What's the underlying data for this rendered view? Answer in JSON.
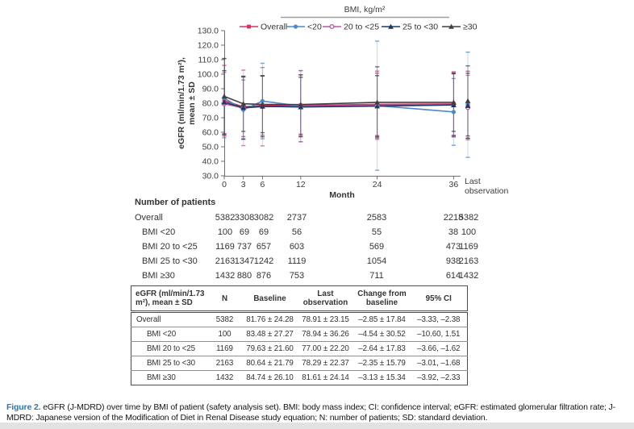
{
  "figure": {
    "caption_label": "Figure 2.",
    "caption_text": "eGFR (J-MDRD) over time by BMI of patient (safety analysis set). BMI: body mass index; CI: confidence interval; eGFR: estimated glomerular filtration rate; J-MDRD: Japanese version of the Modification of Diet in Renal Disease study equation; N: number of patients; SD: standard deviation.",
    "accent_color": "#2e74b5"
  },
  "chart_data": {
    "type": "line",
    "x_label": "Month",
    "y_label_lines": [
      "eGFR (ml/min/1.73 m²),",
      "mean ± SD"
    ],
    "x": [
      0,
      3,
      6,
      12,
      24,
      36
    ],
    "x_tick_labels": [
      "0",
      "3",
      "6",
      "12",
      "24",
      "36"
    ],
    "last_x_label_lines": [
      "Last",
      "observation"
    ],
    "y_ticks": [
      130,
      120,
      110,
      100,
      90,
      80,
      70,
      60,
      50,
      40,
      30
    ],
    "ylim": [
      30,
      130
    ],
    "grid": false,
    "legend_position": "top",
    "legend_header": "BMI, kg/m²",
    "point_labels": [
      "Month 0",
      "Month 3",
      "Month 6",
      "Month 12",
      "Month 24",
      "Month 36",
      "Last observation"
    ],
    "series": [
      {
        "name": "Overall",
        "color": "#d5305f",
        "marker": "square",
        "values": [
          81.76,
          77.5,
          78.5,
          78.5,
          79.2,
          79.5,
          78.91
        ],
        "sd": [
          24.28,
          20.5,
          20.5,
          21.0,
          21.5,
          21.5,
          23.15
        ]
      },
      {
        "name": "<20",
        "color": "#4d88cc",
        "marker": "circle",
        "values": [
          83.48,
          75.5,
          81.5,
          78.0,
          78.3,
          74.0,
          78.94
        ],
        "sd": [
          27.27,
          20.5,
          26.0,
          24.5,
          44.5,
          23.0,
          36.26
        ]
      },
      {
        "name": "20 to <25",
        "color": "#c052a2",
        "marker": "circle-open",
        "values": [
          79.63,
          76.8,
          77.6,
          77.9,
          78.6,
          79.2,
          77.0
        ],
        "sd": [
          21.6,
          26.0,
          27.0,
          24.5,
          23.5,
          22.5,
          22.2
        ]
      },
      {
        "name": "25 to <30",
        "color": "#1f3864",
        "marker": "triangle",
        "values": [
          80.64,
          76.9,
          77.9,
          77.4,
          78.0,
          78.8,
          78.29
        ],
        "sd": [
          21.79,
          21.5,
          21.0,
          20.5,
          21.0,
          21.5,
          22.37
        ]
      },
      {
        "name": "≥30",
        "color": "#3f3f3f",
        "marker": "triangle",
        "values": [
          84.74,
          79.6,
          79.2,
          79.1,
          80.6,
          80.6,
          81.61
        ],
        "sd": [
          26.1,
          19.0,
          19.5,
          20.5,
          24.5,
          20.0,
          24.14
        ]
      }
    ]
  },
  "patients_table": {
    "title": "Number of patients",
    "columns": [
      "0",
      "3",
      "6",
      "12",
      "24",
      "36",
      "Last observation"
    ],
    "rows": [
      {
        "label": "Overall",
        "indent": false,
        "values": [
          "5382",
          "3308",
          "3082",
          "2737",
          "2583",
          "2218",
          "5382"
        ]
      },
      {
        "label": "BMI <20",
        "indent": true,
        "values": [
          "100",
          "69",
          "69",
          "56",
          "55",
          "38",
          "100"
        ]
      },
      {
        "label": "BMI 20 to <25",
        "indent": true,
        "values": [
          "1169",
          "737",
          "657",
          "603",
          "569",
          "473",
          "1169"
        ]
      },
      {
        "label": "BMI 25 to <30",
        "indent": true,
        "values": [
          "2163",
          "1347",
          "1242",
          "1119",
          "1054",
          "938",
          "2163"
        ]
      },
      {
        "label": "BMI ≥30",
        "indent": true,
        "values": [
          "1432",
          "880",
          "876",
          "753",
          "711",
          "614",
          "1432"
        ]
      }
    ]
  },
  "summary_table": {
    "headers": [
      "eGFR (ml/min/1.73 m²), mean ± SD",
      "N",
      "Baseline",
      "Last observation",
      "Change from baseline",
      "95% CI"
    ],
    "rows": [
      {
        "label": "Overall",
        "indent": false,
        "values": [
          "5382",
          "81.76 ± 24.28",
          "78.91 ± 23.15",
          "–2.85 ± 17.84",
          "–3.33, –2.38"
        ]
      },
      {
        "label": "BMI <20",
        "indent": true,
        "values": [
          "100",
          "83.48 ± 27.27",
          "78.94 ± 36.26",
          "–4.54 ± 30.52",
          "–10.60, 1.51"
        ]
      },
      {
        "label": "BMI 20 to <25",
        "indent": true,
        "values": [
          "1169",
          "79.63 ± 21.60",
          "77.00 ± 22.20",
          "–2.64 ± 17.83",
          "–3.66, –1.62"
        ]
      },
      {
        "label": "BMI 25 to <30",
        "indent": true,
        "values": [
          "2163",
          "80.64 ± 21.79",
          "78.29 ± 22.37",
          "–2.35 ± 15.79",
          "–3.01, –1.68"
        ]
      },
      {
        "label": "BMI ≥30",
        "indent": true,
        "values": [
          "1432",
          "84.74 ± 26.10",
          "81.61 ± 24.14",
          "–3.13 ± 15.34",
          "–3.92, –2.33"
        ]
      }
    ]
  }
}
